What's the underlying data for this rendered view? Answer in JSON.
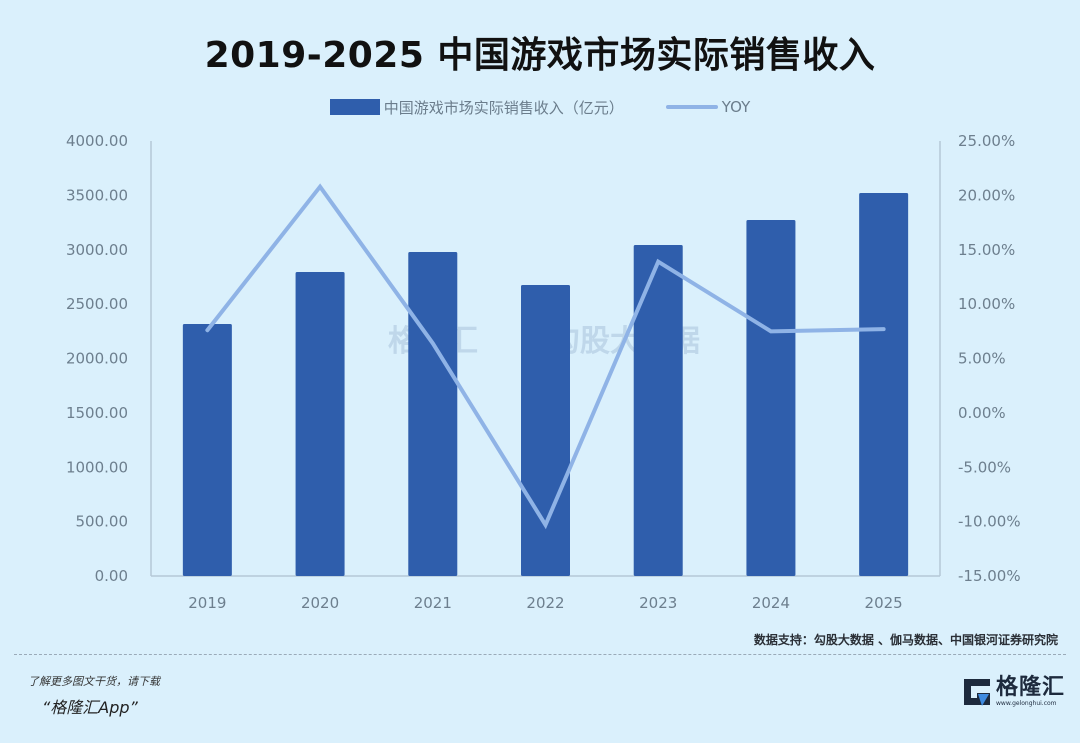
{
  "title": "2019-2025 中国游戏市场实际销售收入",
  "legend": {
    "bar_label": "中国游戏市场实际销售收入（亿元）",
    "line_label": "YOY"
  },
  "chart_data": {
    "type": "bar",
    "title": "2019-2025 中国游戏市场实际销售收入",
    "categories": [
      "2019",
      "2020",
      "2021",
      "2022",
      "2023",
      "2024",
      "2025"
    ],
    "series": [
      {
        "name": "中国游戏市场实际销售收入（亿元）",
        "type": "bar",
        "axis": "left",
        "color": "#2f5eac",
        "values": [
          2317,
          2795,
          2979,
          2676,
          3044,
          3274,
          3522
        ]
      },
      {
        "name": "YOY",
        "type": "line",
        "axis": "right",
        "color": "#8fb3e6",
        "values": [
          7.6,
          20.8,
          6.4,
          -10.3,
          13.9,
          7.5,
          7.7
        ]
      }
    ],
    "left_axis": {
      "min": 0,
      "max": 4000,
      "step": 500,
      "ticks": [
        "0.00",
        "500.00",
        "1000.00",
        "1500.00",
        "2000.00",
        "2500.00",
        "3000.00",
        "3500.00",
        "4000.00"
      ]
    },
    "right_axis": {
      "min": -15,
      "max": 25,
      "step": 5,
      "ticks": [
        "-15.00%",
        "-10.00%",
        "-5.00%",
        "0.00%",
        "5.00%",
        "10.00%",
        "15.00%",
        "20.00%",
        "25.00%"
      ]
    },
    "xlabel": "",
    "ylabel": "",
    "grid": false,
    "legend_position": "top"
  },
  "source": "数据支持：勾股大数据 、伽马数据、中国银河证券研究院",
  "promo": {
    "line1": "了解更多图文干货，请下载",
    "line2": "“格隆汇App”"
  },
  "logo": {
    "name": "格隆汇",
    "url": "www.gelonghui.com"
  },
  "watermarks": [
    "格隆汇",
    "勾股大数据"
  ],
  "colors": {
    "background": "#daf0fc",
    "bar": "#2f5eac",
    "line": "#8fb3e6",
    "axis_text": "#6d7f8e"
  }
}
